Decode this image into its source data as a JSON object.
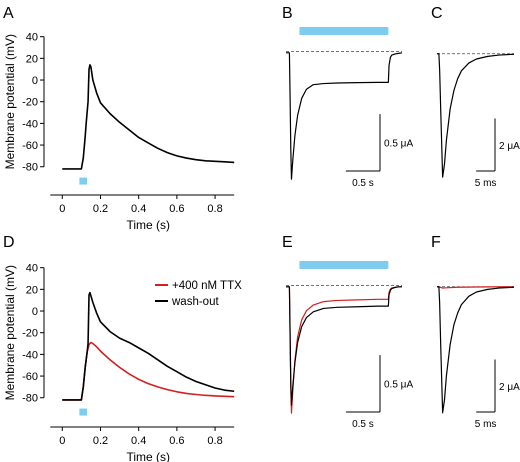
{
  "colors": {
    "trace": "#000000",
    "ttx": "#d51e1e",
    "stim": "#7ecdee",
    "axis": "#000000",
    "dash": "#444444"
  },
  "chart_data": [
    {
      "panel": "A",
      "type": "line",
      "title": "",
      "xlabel": "Time (s)",
      "ylabel": "Membrane potential (mV)",
      "xlim": [
        -0.08,
        0.92
      ],
      "ylim": [
        -95,
        48
      ],
      "xticks": [
        "0",
        "0.2",
        "0.4",
        "0.6",
        "0.8"
      ],
      "yticks": [
        "40",
        "20",
        "0",
        "-20",
        "-40",
        "-60",
        "-80"
      ],
      "stimulus": {
        "start": 0.1,
        "end": 0.14
      },
      "series": [
        {
          "color": "trace",
          "x": [
            0.0,
            0.1,
            0.11,
            0.12,
            0.125,
            0.13,
            0.135,
            0.14,
            0.145,
            0.15,
            0.155,
            0.16,
            0.18,
            0.2,
            0.25,
            0.3,
            0.35,
            0.4,
            0.45,
            0.5,
            0.55,
            0.6,
            0.65,
            0.7,
            0.75,
            0.8,
            0.85,
            0.9
          ],
          "y": [
            -82,
            -82,
            -72,
            -52,
            -40,
            -30,
            -20,
            10,
            14,
            12,
            6,
            0,
            -12,
            -21,
            -31,
            -39,
            -46,
            -53,
            -58,
            -63,
            -67,
            -70,
            -72,
            -73.5,
            -74.5,
            -75,
            -75.5,
            -76
          ]
        }
      ]
    },
    {
      "panel": "B",
      "type": "line",
      "xlim": [
        -0.05,
        1.65
      ],
      "ylim": [
        -1.18,
        0.12
      ],
      "baseline": 0.0,
      "stimulus": {
        "start": 0.0,
        "end": 1.45
      },
      "scalebar": {
        "x_label": "0.5 s",
        "x_value": 0.5,
        "y_label": "0.5 μA",
        "y_value": 0.5
      },
      "series": [
        {
          "color": "trace",
          "x": [
            -0.05,
            0.0,
            0.01,
            0.02,
            0.03,
            0.05,
            0.08,
            0.12,
            0.18,
            0.25,
            0.35,
            0.5,
            0.7,
            1.0,
            1.3,
            1.45,
            1.46,
            1.48,
            1.5,
            1.55,
            1.6,
            1.65
          ],
          "y": [
            -0.01,
            -0.01,
            -0.4,
            -0.85,
            -1.12,
            -0.95,
            -0.74,
            -0.56,
            -0.41,
            -0.33,
            -0.29,
            -0.28,
            -0.275,
            -0.272,
            -0.27,
            -0.27,
            -0.12,
            -0.05,
            -0.03,
            -0.02,
            -0.015,
            -0.01
          ]
        }
      ]
    },
    {
      "panel": "C",
      "type": "line",
      "xlim": [
        -0.5,
        20
      ],
      "ylim": [
        -5.0,
        0.6
      ],
      "baseline": 0.0,
      "scalebar": {
        "x_label": "5 ms",
        "x_value": 5,
        "y_label": "2 μA",
        "y_value": 2
      },
      "series": [
        {
          "color": "trace",
          "x": [
            -0.5,
            0.0,
            0.2,
            0.5,
            1.0,
            1.5,
            2.0,
            3.0,
            4.0,
            5.0,
            6.0,
            8.0,
            10.0,
            13.0,
            16.0,
            20.0
          ],
          "y": [
            0.0,
            0.0,
            -0.6,
            -2.2,
            -4.7,
            -4.2,
            -3.3,
            -2.1,
            -1.4,
            -0.95,
            -0.65,
            -0.35,
            -0.2,
            -0.1,
            -0.05,
            -0.02
          ]
        }
      ]
    },
    {
      "panel": "D",
      "type": "line",
      "title": "",
      "xlabel": "Time (s)",
      "ylabel": "Membrane potential (mV)",
      "xlim": [
        -0.08,
        0.92
      ],
      "ylim": [
        -95,
        48
      ],
      "xticks": [
        "0",
        "0.2",
        "0.4",
        "0.6",
        "0.8"
      ],
      "yticks": [
        "40",
        "20",
        "0",
        "-20",
        "-40",
        "-60",
        "-80"
      ],
      "stimulus": {
        "start": 0.1,
        "end": 0.14
      },
      "legend": {
        "placement": "top-right"
      },
      "series": [
        {
          "name": "+400 nM TTX",
          "color": "ttx",
          "x": [
            0.0,
            0.1,
            0.11,
            0.12,
            0.13,
            0.14,
            0.15,
            0.16,
            0.18,
            0.2,
            0.25,
            0.3,
            0.35,
            0.4,
            0.45,
            0.5,
            0.55,
            0.6,
            0.65,
            0.7,
            0.75,
            0.8,
            0.85,
            0.9
          ],
          "y": [
            -82,
            -82,
            -70,
            -52,
            -38,
            -31,
            -29,
            -30,
            -33,
            -37,
            -45,
            -52,
            -58,
            -63,
            -67,
            -70,
            -72.5,
            -74.5,
            -76,
            -77,
            -77.8,
            -78.3,
            -78.7,
            -79
          ]
        },
        {
          "name": "wash-out",
          "color": "trace",
          "x": [
            0.0,
            0.1,
            0.11,
            0.12,
            0.13,
            0.135,
            0.14,
            0.145,
            0.15,
            0.16,
            0.18,
            0.2,
            0.25,
            0.3,
            0.35,
            0.4,
            0.45,
            0.5,
            0.55,
            0.6,
            0.65,
            0.7,
            0.75,
            0.8,
            0.85,
            0.9
          ],
          "y": [
            -82,
            -82,
            -70,
            -52,
            -38,
            -30,
            15,
            17,
            14,
            8,
            -2,
            -10,
            -19,
            -25,
            -29,
            -34,
            -39,
            -45,
            -51,
            -56,
            -61,
            -65,
            -68,
            -71,
            -73,
            -74
          ]
        }
      ]
    },
    {
      "panel": "E",
      "type": "line",
      "xlim": [
        -0.05,
        1.65
      ],
      "ylim": [
        -1.18,
        0.12
      ],
      "baseline": 0.0,
      "stimulus": {
        "start": 0.0,
        "end": 1.45
      },
      "scalebar": {
        "x_label": "0.5 s",
        "x_value": 0.5,
        "y_label": "0.5 μA",
        "y_value": 0.5
      },
      "series": [
        {
          "color": "ttx",
          "x": [
            -0.05,
            0.0,
            0.01,
            0.02,
            0.03,
            0.05,
            0.08,
            0.12,
            0.18,
            0.25,
            0.35,
            0.5,
            0.7,
            1.0,
            1.3,
            1.45,
            1.46,
            1.48,
            1.5,
            1.55,
            1.6,
            1.65
          ],
          "y": [
            -0.01,
            -0.01,
            -0.45,
            -0.9,
            -1.12,
            -0.92,
            -0.66,
            -0.45,
            -0.3,
            -0.22,
            -0.17,
            -0.14,
            -0.13,
            -0.125,
            -0.12,
            -0.12,
            -0.06,
            -0.03,
            -0.02,
            -0.015,
            -0.01,
            -0.01
          ]
        },
        {
          "color": "trace",
          "x": [
            -0.05,
            0.0,
            0.01,
            0.02,
            0.03,
            0.05,
            0.08,
            0.12,
            0.18,
            0.25,
            0.35,
            0.5,
            0.7,
            1.0,
            1.3,
            1.45,
            1.46,
            1.48,
            1.5,
            1.55,
            1.6,
            1.65
          ],
          "y": [
            -0.01,
            -0.01,
            -0.42,
            -0.85,
            -1.05,
            -0.88,
            -0.68,
            -0.5,
            -0.36,
            -0.28,
            -0.23,
            -0.2,
            -0.19,
            -0.185,
            -0.18,
            -0.18,
            -0.08,
            -0.04,
            -0.025,
            -0.015,
            -0.01,
            -0.01
          ]
        }
      ]
    },
    {
      "panel": "F",
      "type": "line",
      "xlim": [
        -0.5,
        20
      ],
      "ylim": [
        -5.0,
        0.6
      ],
      "baseline": 0.0,
      "scalebar": {
        "x_label": "5 ms",
        "x_value": 5,
        "y_label": "2 μA",
        "y_value": 2
      },
      "series": [
        {
          "color": "ttx",
          "x": [
            -0.5,
            0.0,
            1.0,
            2.0,
            5.0,
            10.0,
            20.0
          ],
          "y": [
            0.0,
            0.0,
            -0.05,
            -0.04,
            -0.02,
            -0.01,
            0.0
          ]
        },
        {
          "color": "trace",
          "x": [
            -0.5,
            0.0,
            0.2,
            0.5,
            1.0,
            1.5,
            2.0,
            3.0,
            4.0,
            5.0,
            6.0,
            8.0,
            10.0,
            13.0,
            16.0,
            20.0
          ],
          "y": [
            0.0,
            0.0,
            -0.6,
            -2.3,
            -4.8,
            -4.3,
            -3.4,
            -2.2,
            -1.45,
            -1.0,
            -0.68,
            -0.36,
            -0.2,
            -0.1,
            -0.05,
            -0.02
          ]
        }
      ]
    }
  ]
}
